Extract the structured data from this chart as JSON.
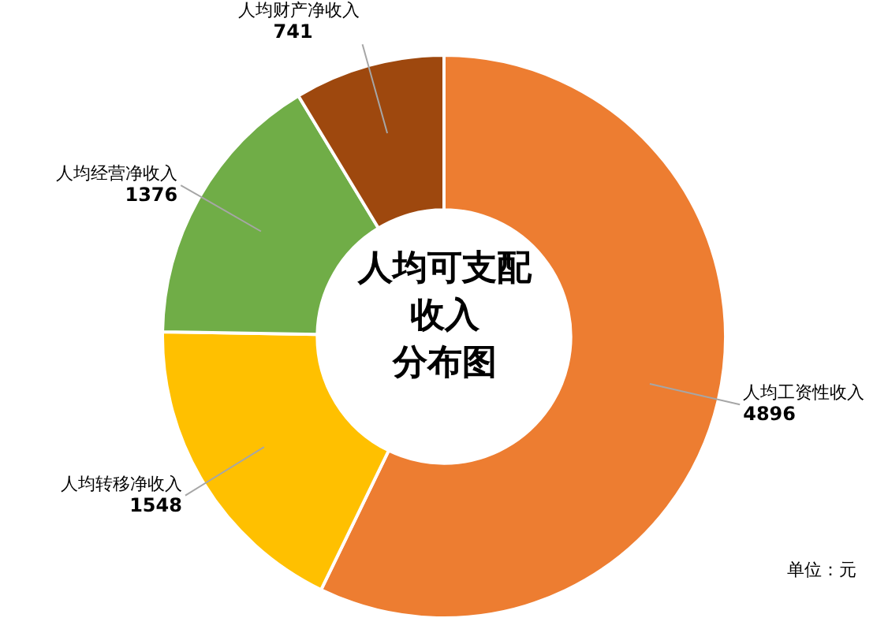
{
  "chart_data": {
    "type": "donut",
    "title": "人均可支配收入分布图",
    "categories": [
      "人均工资性收入",
      "人均转移净收入",
      "人均经营净收入",
      "人均财产净收入"
    ],
    "values": [
      4896,
      1548,
      1376,
      741
    ],
    "colors": [
      "#ed7d31",
      "#ffc000",
      "#70ad47",
      "#9e480e"
    ],
    "data_labels": true,
    "legend": false,
    "annotations": [
      "单位：元"
    ]
  }
}
